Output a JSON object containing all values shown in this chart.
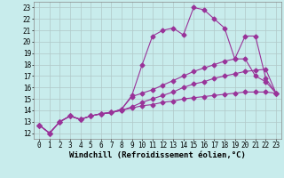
{
  "xlabel": "Windchill (Refroidissement éolien,°C)",
  "background_color": "#c8ecec",
  "line_color": "#993399",
  "grid_color": "#b0c8c8",
  "xlim": [
    -0.5,
    23.5
  ],
  "ylim": [
    11.5,
    23.5
  ],
  "xticks": [
    0,
    1,
    2,
    3,
    4,
    5,
    6,
    7,
    8,
    9,
    10,
    11,
    12,
    13,
    14,
    15,
    16,
    17,
    18,
    19,
    20,
    21,
    22,
    23
  ],
  "yticks": [
    12,
    13,
    14,
    15,
    16,
    17,
    18,
    19,
    20,
    21,
    22,
    23
  ],
  "lines": [
    {
      "x": [
        0,
        1,
        2,
        3,
        4,
        5,
        6,
        7,
        8,
        9,
        10,
        11,
        12,
        13,
        14,
        15,
        16,
        17,
        18,
        19,
        20,
        21,
        22,
        23
      ],
      "y": [
        12.7,
        12.0,
        13.0,
        13.5,
        13.2,
        13.5,
        13.7,
        13.8,
        14.0,
        14.2,
        14.4,
        14.5,
        14.7,
        14.8,
        15.0,
        15.1,
        15.2,
        15.3,
        15.4,
        15.5,
        15.6,
        15.6,
        15.6,
        15.5
      ]
    },
    {
      "x": [
        0,
        1,
        2,
        3,
        4,
        5,
        6,
        7,
        8,
        9,
        10,
        11,
        12,
        13,
        14,
        15,
        16,
        17,
        18,
        19,
        20,
        21,
        22,
        23
      ],
      "y": [
        12.7,
        12.0,
        13.0,
        13.5,
        13.2,
        13.5,
        13.7,
        13.8,
        14.0,
        14.3,
        14.7,
        15.0,
        15.3,
        15.6,
        16.0,
        16.3,
        16.5,
        16.8,
        17.0,
        17.2,
        17.4,
        17.5,
        17.6,
        15.5
      ]
    },
    {
      "x": [
        0,
        1,
        2,
        3,
        4,
        5,
        6,
        7,
        8,
        9,
        10,
        11,
        12,
        13,
        14,
        15,
        16,
        17,
        18,
        19,
        20,
        21,
        22,
        23
      ],
      "y": [
        12.7,
        12.0,
        13.0,
        13.5,
        13.2,
        13.5,
        13.7,
        13.8,
        14.1,
        15.2,
        15.5,
        15.8,
        16.2,
        16.6,
        17.0,
        17.4,
        17.7,
        18.0,
        18.3,
        18.5,
        18.5,
        17.0,
        16.5,
        15.5
      ]
    },
    {
      "x": [
        0,
        1,
        2,
        3,
        4,
        5,
        6,
        7,
        8,
        9,
        10,
        11,
        12,
        13,
        14,
        15,
        16,
        17,
        18,
        19,
        20,
        21,
        22,
        23
      ],
      "y": [
        12.7,
        12.0,
        13.0,
        13.5,
        13.2,
        13.5,
        13.7,
        13.8,
        14.1,
        15.3,
        18.0,
        20.5,
        21.0,
        21.2,
        20.6,
        23.0,
        22.8,
        22.0,
        21.2,
        18.5,
        20.5,
        20.5,
        16.8,
        15.5
      ]
    }
  ],
  "marker": "D",
  "marker_size": 2.5,
  "linewidth": 0.8,
  "xlabel_fontsize": 6.5,
  "tick_fontsize": 5.5
}
